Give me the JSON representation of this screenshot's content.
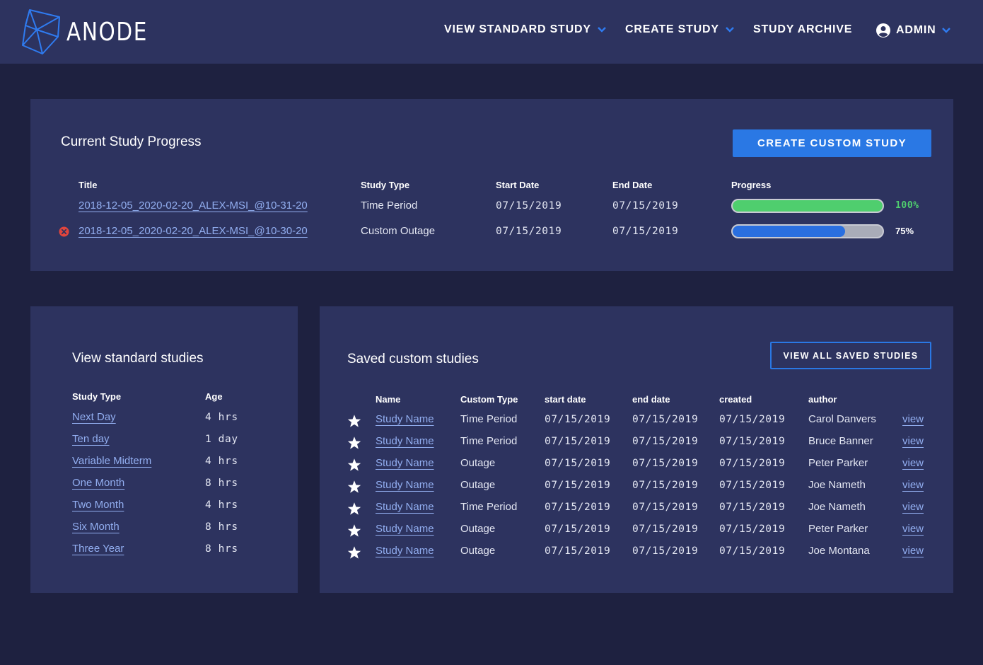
{
  "app": {
    "logo_text": "ANODE"
  },
  "nav": {
    "view_standard_study": "VIEW STANDARD STUDY",
    "create_study": "CREATE STUDY",
    "study_archive": "STUDY ARCHIVE",
    "admin": "ADMIN"
  },
  "progress": {
    "title": "Current Study Progress",
    "create_button": "CREATE CUSTOM STUDY",
    "headers": {
      "title": "Title",
      "study_type": "Study Type",
      "start_date": "Start Date",
      "end_date": "End Date",
      "progress": "Progress"
    },
    "rows": [
      {
        "title": "2018-12-05_2020-02-20_ALEX-MSI_@10-31-20",
        "study_type": "Time Period",
        "start_date": "07/15/2019",
        "end_date": "07/15/2019",
        "progress_label": "100%",
        "progress_value": 1.0,
        "color": "#4fce6e",
        "error": false
      },
      {
        "title": "2018-12-05_2020-02-20_ALEX-MSI_@10-30-20",
        "study_type": "Custom Outage",
        "start_date": "07/15/2019",
        "end_date": "07/15/2019",
        "progress_label": "75%",
        "progress_value": 0.75,
        "color": "#2a6fe0",
        "error": true
      }
    ]
  },
  "standard": {
    "title": "View standard studies",
    "headers": {
      "study_type": "Study Type",
      "age": "Age"
    },
    "rows": [
      {
        "name": "Next Day",
        "age": "4 hrs"
      },
      {
        "name": "Ten day",
        "age": "1 day"
      },
      {
        "name": "Variable Midterm",
        "age": "4 hrs"
      },
      {
        "name": "One Month",
        "age": "8 hrs"
      },
      {
        "name": "Two Month",
        "age": "4 hrs"
      },
      {
        "name": "Six Month",
        "age": "8 hrs"
      },
      {
        "name": "Three Year",
        "age": "8 hrs"
      }
    ]
  },
  "saved": {
    "title": "Saved custom studies",
    "view_all_button": "VIEW ALL SAVED STUDIES",
    "headers": {
      "name": "Name",
      "custom_type": "Custom Type",
      "start_date": "start date",
      "end_date": "end date",
      "created": "created",
      "author": "author"
    },
    "rows": [
      {
        "name": "Study Name",
        "custom_type": "Time Period",
        "start_date": "07/15/2019",
        "end_date": "07/15/2019",
        "created": "07/15/2019",
        "author": "Carol Danvers",
        "action": "view"
      },
      {
        "name": "Study Name",
        "custom_type": "Time Period",
        "start_date": "07/15/2019",
        "end_date": "07/15/2019",
        "created": "07/15/2019",
        "author": "Bruce Banner",
        "action": "view"
      },
      {
        "name": "Study Name",
        "custom_type": "Outage",
        "start_date": "07/15/2019",
        "end_date": "07/15/2019",
        "created": "07/15/2019",
        "author": "Peter Parker",
        "action": "view"
      },
      {
        "name": "Study Name",
        "custom_type": "Outage",
        "start_date": "07/15/2019",
        "end_date": "07/15/2019",
        "created": "07/15/2019",
        "author": "Joe Nameth",
        "action": "view"
      },
      {
        "name": "Study Name",
        "custom_type": "Time Period",
        "start_date": "07/15/2019",
        "end_date": "07/15/2019",
        "created": "07/15/2019",
        "author": "Joe Nameth",
        "action": "view"
      },
      {
        "name": "Study Name",
        "custom_type": "Outage",
        "start_date": "07/15/2019",
        "end_date": "07/15/2019",
        "created": "07/15/2019",
        "author": "Peter Parker",
        "action": "view"
      },
      {
        "name": "Study Name",
        "custom_type": "Outage",
        "start_date": "07/15/2019",
        "end_date": "07/15/2019",
        "created": "07/15/2019",
        "author": "Joe Montana",
        "action": "view"
      }
    ]
  },
  "icons": {
    "logo": "anode-logo-icon",
    "chevron": "chevron-down-icon",
    "user": "user-circle-icon",
    "error": "error-icon",
    "star": "star-icon"
  },
  "colors": {
    "accent": "#2a78e4",
    "success": "#4fce6e",
    "error": "#e0453d",
    "link": "#92aef0",
    "panel": "#2d335f",
    "background": "#1e2140"
  }
}
